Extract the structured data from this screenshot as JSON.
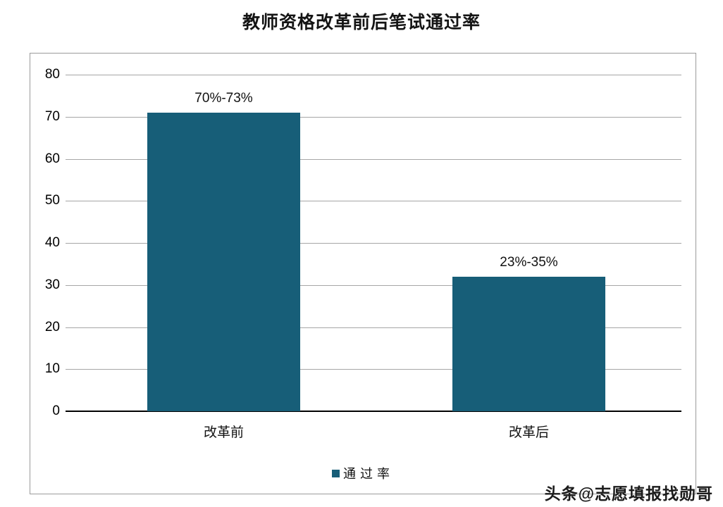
{
  "title": "教师资格改革前后笔试通过率",
  "watermark": "头条@志愿填报找勋哥",
  "legend": {
    "label": "通过率",
    "color": "#175e78"
  },
  "chart_data": {
    "type": "bar",
    "title": "教师资格改革前后笔试通过率",
    "categories": [
      "改革前",
      "改革后"
    ],
    "series": [
      {
        "name": "通过率",
        "values": [
          71,
          32
        ]
      }
    ],
    "values": [
      71,
      32
    ],
    "data_labels": [
      "70%-73%",
      "23%-35%"
    ],
    "xlabel": "",
    "ylabel": "",
    "ylim": [
      0,
      80
    ],
    "yticks": [
      0,
      10,
      20,
      30,
      40,
      50,
      60,
      70,
      80
    ],
    "grid": true,
    "legend_position": "bottom",
    "bar_color": "#175e78",
    "gridline_color": "#a6a6a6"
  }
}
